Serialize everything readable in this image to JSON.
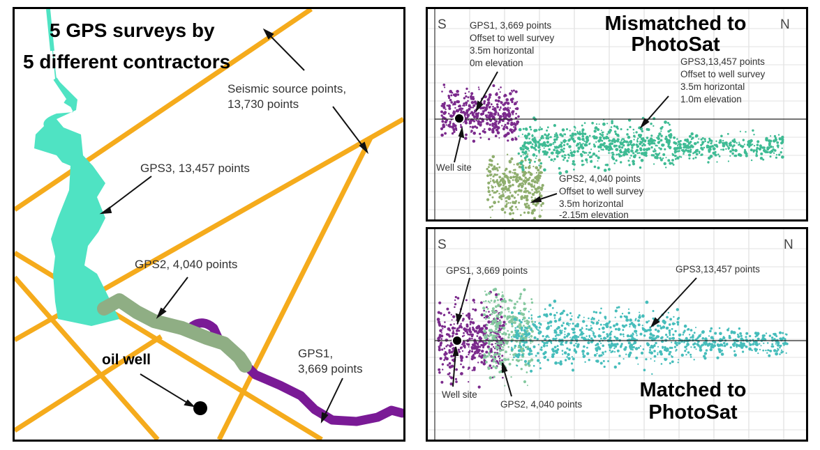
{
  "map": {
    "title_line1": "5 GPS surveys by",
    "title_line2": "5 different contractors",
    "seismic_line1": "Seismic source points,",
    "seismic_line2": "13,730 points",
    "gps3_label": "GPS3, 13,457 points",
    "gps2_label": "GPS2, 4,040 points",
    "gps1_line1": "GPS1,",
    "gps1_line2": "3,669 points",
    "oil_well_label": "oil well"
  },
  "mismatched": {
    "south": "S",
    "north": "N",
    "title_line1": "Mismatched to",
    "title_line2": "PhotoSat",
    "gps1_lines": [
      "GPS1, 3,669 points",
      "Offset to well survey",
      "3.5m horizontal",
      "0m elevation"
    ],
    "gps3_lines": [
      "GPS3,13,457 points",
      "Offset to well survey",
      "3.5m horizontal",
      "1.0m elevation"
    ],
    "gps2_lines": [
      "GPS2, 4,040 points",
      "Offset to well survey",
      "3.5m horizontal",
      "-2.15m elevation"
    ],
    "well_site": "Well site"
  },
  "matched": {
    "south": "S",
    "north": "N",
    "title_line1": "Matched to",
    "title_line2": "PhotoSat",
    "gps1_label": "GPS1, 3,669 points",
    "gps3_label": "GPS3,13,457 points",
    "gps2_label": "GPS2, 4,040 points",
    "well_site": "Well site"
  },
  "colors": {
    "road": "#f5ab1c",
    "gps3": "#4fe3c3",
    "gps2": "#8fae84",
    "gps1": "#7a1a96",
    "plot_gps1": "#7b2a8c",
    "plot_gps2_mis": "#8fae6e",
    "plot_gps2_match": "#86c9a0",
    "plot_gps3_mis": "#3fbb94",
    "plot_gps3_match": "#46bdbb"
  }
}
